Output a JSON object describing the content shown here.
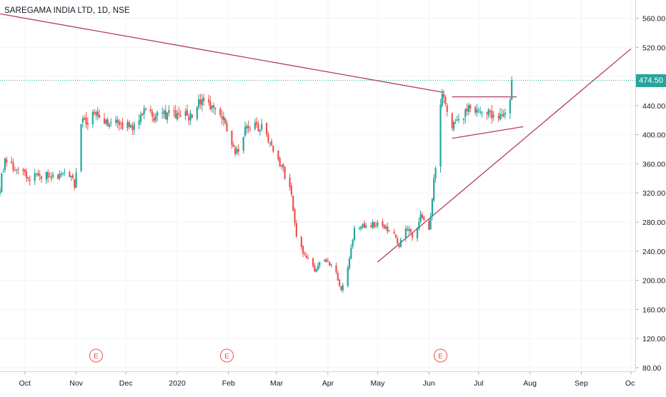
{
  "header": {
    "symbol_title": "SAREGAMA INDIA LTD, 1D, NSE"
  },
  "colors": {
    "up": "#26a69a",
    "down": "#ef5350",
    "trendline": "#b33a63",
    "event": "#ef5350",
    "grid": "#f0f3fa",
    "last_price_line": "#26a69a"
  },
  "last_price": {
    "label": "474.50",
    "value": 474.5
  },
  "events": {
    "label": "E",
    "dates": [
      "2019-11-13",
      "2020-01-31",
      "2020-06-08"
    ]
  },
  "chart_data": {
    "type": "candlestick",
    "title": "SAREGAMA INDIA LTD, 1D, NSE",
    "xlabel": "",
    "ylabel": "",
    "ylim": [
      75,
      585
    ],
    "xlim": [
      "2019-09-16",
      "2020-10-01"
    ],
    "grid": true,
    "y_ticks": [
      "80.00",
      "120.00",
      "160.00",
      "200.00",
      "240.00",
      "280.00",
      "320.00",
      "360.00",
      "400.00",
      "440.00",
      "480.00",
      "520.00",
      "560.00"
    ],
    "x_ticks": [
      {
        "date": "2019-10-01",
        "label": "Oct"
      },
      {
        "date": "2019-11-01",
        "label": "Nov"
      },
      {
        "date": "2019-12-01",
        "label": "Dec"
      },
      {
        "date": "2020-01-01",
        "label": "2020"
      },
      {
        "date": "2020-02-01",
        "label": "Feb"
      },
      {
        "date": "2020-03-01",
        "label": "Mar"
      },
      {
        "date": "2020-04-01",
        "label": "Apr"
      },
      {
        "date": "2020-05-01",
        "label": "May"
      },
      {
        "date": "2020-06-01",
        "label": "Jun"
      },
      {
        "date": "2020-07-01",
        "label": "Jul"
      },
      {
        "date": "2020-08-01",
        "label": "Aug"
      },
      {
        "date": "2020-09-01",
        "label": "Sep"
      },
      {
        "date": "2020-10-01",
        "label": "Oct"
      }
    ],
    "anchors": [
      [
        "2019-09-16",
        327
      ],
      [
        "2019-09-19",
        370
      ],
      [
        "2019-09-24",
        355
      ],
      [
        "2019-10-03",
        340
      ],
      [
        "2019-10-15",
        345
      ],
      [
        "2019-10-29",
        345
      ],
      [
        "2019-10-31",
        330
      ],
      [
        "2019-11-04",
        415
      ],
      [
        "2019-11-11",
        425
      ],
      [
        "2019-11-20",
        420
      ],
      [
        "2019-12-04",
        410
      ],
      [
        "2019-12-11",
        430
      ],
      [
        "2019-12-20",
        425
      ],
      [
        "2019-12-31",
        430
      ],
      [
        "2020-01-08",
        425
      ],
      [
        "2020-01-15",
        445
      ],
      [
        "2020-01-22",
        435
      ],
      [
        "2020-01-29",
        420
      ],
      [
        "2020-02-03",
        385
      ],
      [
        "2020-02-05",
        370
      ],
      [
        "2020-02-12",
        410
      ],
      [
        "2020-02-21",
        410
      ],
      [
        "2020-02-28",
        380
      ],
      [
        "2020-03-04",
        355
      ],
      [
        "2020-03-09",
        330
      ],
      [
        "2020-03-13",
        260
      ],
      [
        "2020-03-19",
        230
      ],
      [
        "2020-03-24",
        215
      ],
      [
        "2020-03-30",
        230
      ],
      [
        "2020-04-06",
        210
      ],
      [
        "2020-04-09",
        185
      ],
      [
        "2020-04-13",
        215
      ],
      [
        "2020-04-17",
        270
      ],
      [
        "2020-04-24",
        275
      ],
      [
        "2020-05-04",
        275
      ],
      [
        "2020-05-08",
        270
      ],
      [
        "2020-05-14",
        250
      ],
      [
        "2020-05-20",
        275
      ],
      [
        "2020-05-22",
        255
      ],
      [
        "2020-05-27",
        290
      ],
      [
        "2020-06-01",
        270
      ],
      [
        "2020-06-04",
        335
      ],
      [
        "2020-06-05",
        360
      ],
      [
        "2020-06-08",
        440
      ],
      [
        "2020-06-09",
        455
      ],
      [
        "2020-06-15",
        415
      ],
      [
        "2020-06-25",
        435
      ],
      [
        "2020-07-06",
        430
      ],
      [
        "2020-07-13",
        420
      ],
      [
        "2020-07-17",
        435
      ],
      [
        "2020-07-20",
        445
      ],
      [
        "2020-07-21",
        474.5
      ]
    ],
    "trendlines": [
      {
        "points": [
          [
            "2019-09-16",
            566
          ],
          [
            "2020-06-10",
            458
          ]
        ]
      },
      {
        "points": [
          [
            "2020-05-01",
            225
          ],
          [
            "2020-10-01",
            518
          ]
        ]
      },
      {
        "points": [
          [
            "2020-06-15",
            452
          ],
          [
            "2020-07-24",
            452
          ]
        ]
      },
      {
        "points": [
          [
            "2020-06-15",
            395
          ],
          [
            "2020-07-28",
            411
          ]
        ]
      }
    ]
  }
}
